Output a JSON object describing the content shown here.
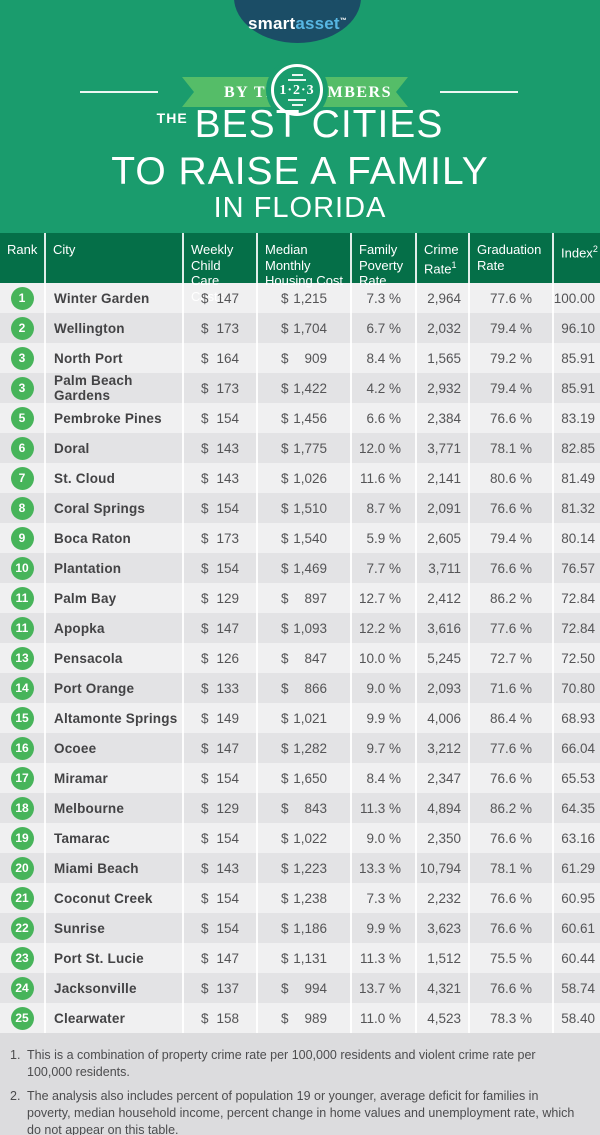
{
  "logo": {
    "brand_left": "smart",
    "brand_right": "asset",
    "trademark": "™"
  },
  "banner": {
    "left_text": "BY THE",
    "badge_text": "1·2·3",
    "right_text": "NUMBERS"
  },
  "title": {
    "prefix": "THE",
    "line1": "BEST CITIES",
    "line2": "TO RAISE A FAMILY",
    "line3": "IN FLORIDA"
  },
  "chart_data": {
    "type": "table",
    "title": "The Best Cities to Raise a Family in Florida",
    "currency_symbol": "$",
    "columns": [
      {
        "label": "Rank",
        "sup": ""
      },
      {
        "label": "City",
        "sup": ""
      },
      {
        "label": "Weekly Child Care Costs",
        "sup": ""
      },
      {
        "label": "Median Monthly Housing Cost",
        "sup": ""
      },
      {
        "label": "Family Poverty Rate",
        "sup": ""
      },
      {
        "label": "Crime Rate",
        "sup": "1"
      },
      {
        "label": "Graduation Rate",
        "sup": ""
      },
      {
        "label": "Index",
        "sup": "2"
      }
    ],
    "rows": [
      {
        "rank": "1",
        "city": "Winter Garden",
        "child_care": "147",
        "housing": "1,215",
        "poverty": "7.3 %",
        "crime": "2,964",
        "graduation": "77.6 %",
        "index": "100.00"
      },
      {
        "rank": "2",
        "city": "Wellington",
        "child_care": "173",
        "housing": "1,704",
        "poverty": "6.7 %",
        "crime": "2,032",
        "graduation": "79.4 %",
        "index": "96.10"
      },
      {
        "rank": "3",
        "city": "North Port",
        "child_care": "164",
        "housing": "909",
        "poverty": "8.4 %",
        "crime": "1,565",
        "graduation": "79.2 %",
        "index": "85.91"
      },
      {
        "rank": "3",
        "city": "Palm Beach Gardens",
        "child_care": "173",
        "housing": "1,422",
        "poverty": "4.2 %",
        "crime": "2,932",
        "graduation": "79.4 %",
        "index": "85.91"
      },
      {
        "rank": "5",
        "city": "Pembroke Pines",
        "child_care": "154",
        "housing": "1,456",
        "poverty": "6.6 %",
        "crime": "2,384",
        "graduation": "76.6 %",
        "index": "83.19"
      },
      {
        "rank": "6",
        "city": "Doral",
        "child_care": "143",
        "housing": "1,775",
        "poverty": "12.0 %",
        "crime": "3,771",
        "graduation": "78.1 %",
        "index": "82.85"
      },
      {
        "rank": "7",
        "city": "St. Cloud",
        "child_care": "143",
        "housing": "1,026",
        "poverty": "11.6 %",
        "crime": "2,141",
        "graduation": "80.6 %",
        "index": "81.49"
      },
      {
        "rank": "8",
        "city": "Coral Springs",
        "child_care": "154",
        "housing": "1,510",
        "poverty": "8.7 %",
        "crime": "2,091",
        "graduation": "76.6 %",
        "index": "81.32"
      },
      {
        "rank": "9",
        "city": "Boca Raton",
        "child_care": "173",
        "housing": "1,540",
        "poverty": "5.9 %",
        "crime": "2,605",
        "graduation": "79.4 %",
        "index": "80.14"
      },
      {
        "rank": "10",
        "city": "Plantation",
        "child_care": "154",
        "housing": "1,469",
        "poverty": "7.7 %",
        "crime": "3,711",
        "graduation": "76.6 %",
        "index": "76.57"
      },
      {
        "rank": "11",
        "city": "Palm Bay",
        "child_care": "129",
        "housing": "897",
        "poverty": "12.7 %",
        "crime": "2,412",
        "graduation": "86.2 %",
        "index": "72.84"
      },
      {
        "rank": "11",
        "city": "Apopka",
        "child_care": "147",
        "housing": "1,093",
        "poverty": "12.2 %",
        "crime": "3,616",
        "graduation": "77.6 %",
        "index": "72.84"
      },
      {
        "rank": "13",
        "city": "Pensacola",
        "child_care": "126",
        "housing": "847",
        "poverty": "10.0 %",
        "crime": "5,245",
        "graduation": "72.7 %",
        "index": "72.50"
      },
      {
        "rank": "14",
        "city": "Port Orange",
        "child_care": "133",
        "housing": "866",
        "poverty": "9.0 %",
        "crime": "2,093",
        "graduation": "71.6 %",
        "index": "70.80"
      },
      {
        "rank": "15",
        "city": "Altamonte Springs",
        "child_care": "149",
        "housing": "1,021",
        "poverty": "9.9 %",
        "crime": "4,006",
        "graduation": "86.4 %",
        "index": "68.93"
      },
      {
        "rank": "16",
        "city": "Ocoee",
        "child_care": "147",
        "housing": "1,282",
        "poverty": "9.7 %",
        "crime": "3,212",
        "graduation": "77.6 %",
        "index": "66.04"
      },
      {
        "rank": "17",
        "city": "Miramar",
        "child_care": "154",
        "housing": "1,650",
        "poverty": "8.4 %",
        "crime": "2,347",
        "graduation": "76.6 %",
        "index": "65.53"
      },
      {
        "rank": "18",
        "city": "Melbourne",
        "child_care": "129",
        "housing": "843",
        "poverty": "11.3 %",
        "crime": "4,894",
        "graduation": "86.2 %",
        "index": "64.35"
      },
      {
        "rank": "19",
        "city": "Tamarac",
        "child_care": "154",
        "housing": "1,022",
        "poverty": "9.0 %",
        "crime": "2,350",
        "graduation": "76.6 %",
        "index": "63.16"
      },
      {
        "rank": "20",
        "city": "Miami Beach",
        "child_care": "143",
        "housing": "1,223",
        "poverty": "13.3 %",
        "crime": "10,794",
        "graduation": "78.1 %",
        "index": "61.29"
      },
      {
        "rank": "21",
        "city": "Coconut Creek",
        "child_care": "154",
        "housing": "1,238",
        "poverty": "7.3 %",
        "crime": "2,232",
        "graduation": "76.6 %",
        "index": "60.95"
      },
      {
        "rank": "22",
        "city": "Sunrise",
        "child_care": "154",
        "housing": "1,186",
        "poverty": "9.9 %",
        "crime": "3,623",
        "graduation": "76.6 %",
        "index": "60.61"
      },
      {
        "rank": "23",
        "city": "Port St. Lucie",
        "child_care": "147",
        "housing": "1,131",
        "poverty": "11.3 %",
        "crime": "1,512",
        "graduation": "75.5 %",
        "index": "60.44"
      },
      {
        "rank": "24",
        "city": "Jacksonville",
        "child_care": "137",
        "housing": "994",
        "poverty": "13.7 %",
        "crime": "4,321",
        "graduation": "76.6 %",
        "index": "58.74"
      },
      {
        "rank": "25",
        "city": "Clearwater",
        "child_care": "158",
        "housing": "989",
        "poverty": "11.0 %",
        "crime": "4,523",
        "graduation": "78.3 %",
        "index": "58.40"
      }
    ]
  },
  "footnotes": [
    {
      "num": "1.",
      "text": "This is a combination of property crime rate per 100,000 residents and violent crime rate per 100,000 residents."
    },
    {
      "num": "2.",
      "text": "The analysis also includes percent of population 19 or younger, average deficit for families in poverty, median household income, percent change in home values and unemployment rate, which do not appear on this table."
    }
  ],
  "colors": {
    "background_green": "#1a9c6d",
    "ribbon_green": "#55bd68",
    "header_green": "#056f48",
    "rank_circle_green": "#47b45a",
    "logo_navy": "#1b4d66",
    "logo_blue": "#57b6e3",
    "row_odd": "#f0f0f1",
    "row_even": "#e3e3e5",
    "footnote_bg": "#dcdcde"
  }
}
